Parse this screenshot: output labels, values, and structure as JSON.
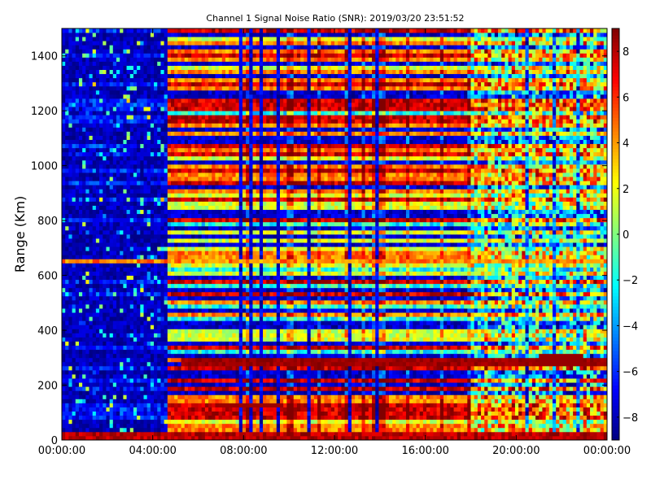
{
  "chart_data": {
    "type": "heatmap",
    "title": "Channel 1 Signal Noise Ratio (SNR): 2019/03/20 23:51:52",
    "xlabel": "",
    "ylabel": "Range (Km)",
    "x_ticks": [
      "00:00:00",
      "04:00:00",
      "08:00:00",
      "12:00:00",
      "16:00:00",
      "20:00:00",
      "00:00:00"
    ],
    "x_range_hours": [
      0,
      24
    ],
    "y_ticks": [
      "0",
      "200",
      "400",
      "600",
      "800",
      "1000",
      "1200",
      "1400"
    ],
    "ylim": [
      0,
      1500
    ],
    "colorbar": {
      "colormap": "jet",
      "range": [
        -9,
        9
      ],
      "ticks": [
        "8",
        "6",
        "4",
        "2",
        "0",
        "−2",
        "−4",
        "−6",
        "−8"
      ]
    },
    "approximate_features": {
      "quiet_period_hours": [
        0,
        4.7
      ],
      "strong_low_range_band_km": [
        0,
        30
      ],
      "persistent_line_km": 650,
      "sporadic_layer": {
        "hours": [
          6.9,
          9.8
        ],
        "range_km": [
          115,
          140
        ]
      },
      "evening_echo": {
        "hours": [
          21.0,
          23.0
        ],
        "range_km": [
          270,
          310
        ]
      },
      "band_near_280km_after_hours": 5.2
    }
  }
}
